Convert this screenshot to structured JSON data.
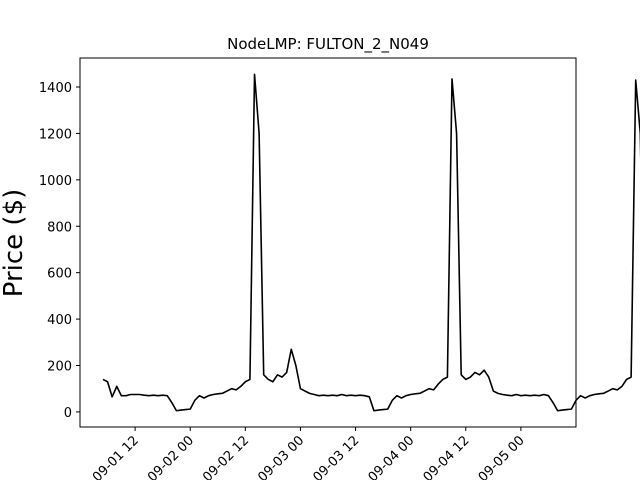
{
  "chart_data": {
    "type": "line",
    "title": "NodeLMP: FULTON_2_N049",
    "xlabel": "",
    "ylabel": "Price ($)",
    "x_start": "2024-09-01 05:00",
    "x_step_hours": 1,
    "xlim": [
      "2024-09-01 00:00",
      "2024-09-05 12:00"
    ],
    "ylim": [
      -65,
      1525
    ],
    "x_ticks": [
      {
        "value": "2024-09-01 12:00",
        "label": "09-01 12"
      },
      {
        "value": "2024-09-02 00:00",
        "label": "09-02 00"
      },
      {
        "value": "2024-09-02 12:00",
        "label": "09-02 12"
      },
      {
        "value": "2024-09-03 00:00",
        "label": "09-03 00"
      },
      {
        "value": "2024-09-03 12:00",
        "label": "09-03 12"
      },
      {
        "value": "2024-09-04 00:00",
        "label": "09-04 00"
      },
      {
        "value": "2024-09-04 12:00",
        "label": "09-04 12"
      },
      {
        "value": "2024-09-05 00:00",
        "label": "09-05 00"
      }
    ],
    "y_ticks": [
      {
        "value": 0,
        "label": "0"
      },
      {
        "value": 200,
        "label": "200"
      },
      {
        "value": 400,
        "label": "400"
      },
      {
        "value": 600,
        "label": "600"
      },
      {
        "value": 800,
        "label": "800"
      },
      {
        "value": 1000,
        "label": "1000"
      },
      {
        "value": 1200,
        "label": "1200"
      },
      {
        "value": 1400,
        "label": "1400"
      }
    ],
    "grid": false,
    "legend": "none",
    "series": [
      {
        "color": "#000000",
        "values": [
          140,
          130,
          65,
          110,
          70,
          70,
          75,
          75,
          75,
          72,
          70,
          72,
          70,
          72,
          70,
          40,
          5,
          8,
          10,
          12,
          50,
          70,
          60,
          70,
          75,
          78,
          80,
          90,
          100,
          95,
          110,
          130,
          140,
          1455,
          1200,
          160,
          140,
          130,
          160,
          150,
          170,
          270,
          200,
          100,
          90,
          80,
          75,
          70,
          72,
          70,
          72,
          70,
          75,
          70,
          72,
          70,
          72,
          70,
          65,
          5,
          8,
          10,
          12,
          50,
          70,
          60,
          70,
          75,
          78,
          80,
          90,
          100,
          95,
          120,
          140,
          150,
          1435,
          1200,
          160,
          140,
          150,
          170,
          160,
          180,
          150,
          90,
          80,
          75,
          72,
          70,
          75,
          70,
          72,
          70,
          72,
          70,
          75,
          70,
          40,
          5,
          8,
          10,
          12,
          50,
          70,
          60,
          70,
          75,
          78,
          80,
          90,
          100,
          95,
          110,
          140,
          150,
          1430,
          1200,
          160,
          140,
          150,
          170,
          160,
          175,
          140,
          90,
          80,
          75,
          72,
          70,
          75,
          70,
          72,
          70,
          72,
          75,
          70,
          40,
          5,
          8,
          10,
          12,
          50,
          70,
          60,
          70,
          75,
          78,
          80,
          90,
          100,
          95,
          110,
          140,
          150,
          1430,
          1200,
          160,
          140,
          150,
          170,
          160,
          175,
          140,
          90,
          80,
          75,
          90
        ]
      }
    ]
  }
}
